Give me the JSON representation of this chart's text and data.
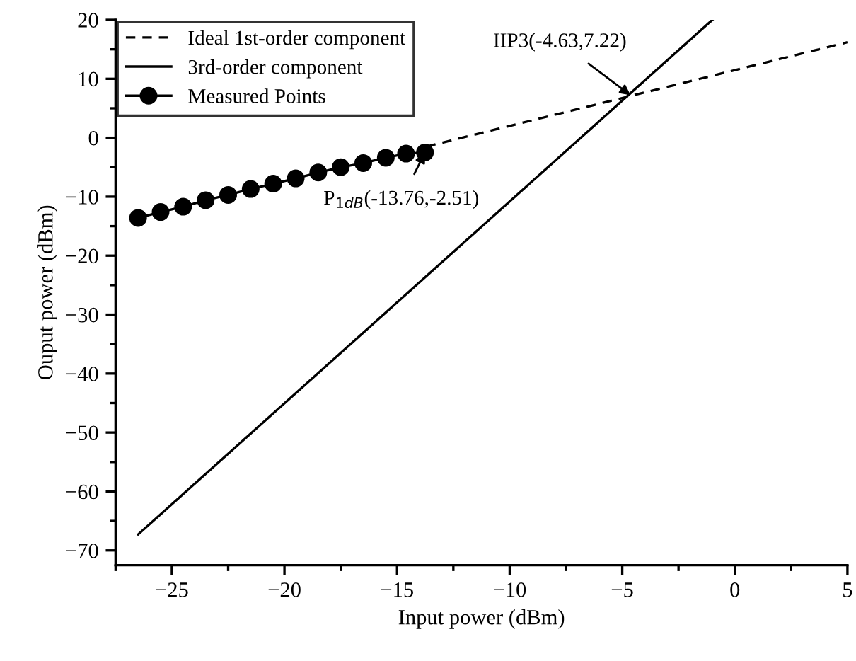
{
  "chart_data": {
    "type": "line",
    "xlabel": "Input power (dBm)",
    "ylabel": "Ouput power (dBm)",
    "xlim": [
      -27.5,
      5
    ],
    "xticks": [
      -25,
      -20,
      -15,
      -10,
      -5,
      0,
      5
    ],
    "ylim": [
      -72.5,
      20
    ],
    "yticks": [
      -70,
      -60,
      -50,
      -40,
      -30,
      -20,
      -10,
      0,
      10,
      20
    ],
    "grid": false,
    "legend": "top left",
    "series": [
      {
        "name": "Ideal 1st-order component",
        "color": "#000000",
        "line_style": "dashed",
        "marker": "none",
        "x": [
          -13.7,
          5
        ],
        "values": [
          -1.5,
          16.2
        ]
      },
      {
        "name": "3rd-order component",
        "color": "#000000",
        "line_style": "solid",
        "marker": "none",
        "x": [
          -26.5,
          -1.0
        ],
        "values": [
          -67.3,
          20
        ]
      },
      {
        "name": "Measured Points",
        "color": "#000000",
        "line_style": "solid",
        "marker": "circle",
        "x": [
          -26.5,
          -25.5,
          -24.5,
          -23.5,
          -22.5,
          -21.5,
          -20.5,
          -19.5,
          -18.5,
          -17.5,
          -16.5,
          -15.5,
          -14.6,
          -13.76
        ],
        "values": [
          -13.6,
          -12.6,
          -11.7,
          -10.6,
          -9.7,
          -8.7,
          -7.8,
          -6.9,
          -5.9,
          -5.0,
          -4.3,
          -3.4,
          -2.7,
          -2.5
        ]
      }
    ],
    "annotations": [
      {
        "text": "IIP3(-4.63,7.22)",
        "x": -4.63,
        "y": 7.22
      },
      {
        "text": "P$_{1dB}$(-13.76,-2.51)",
        "x": -13.76,
        "y": -2.51
      }
    ]
  }
}
